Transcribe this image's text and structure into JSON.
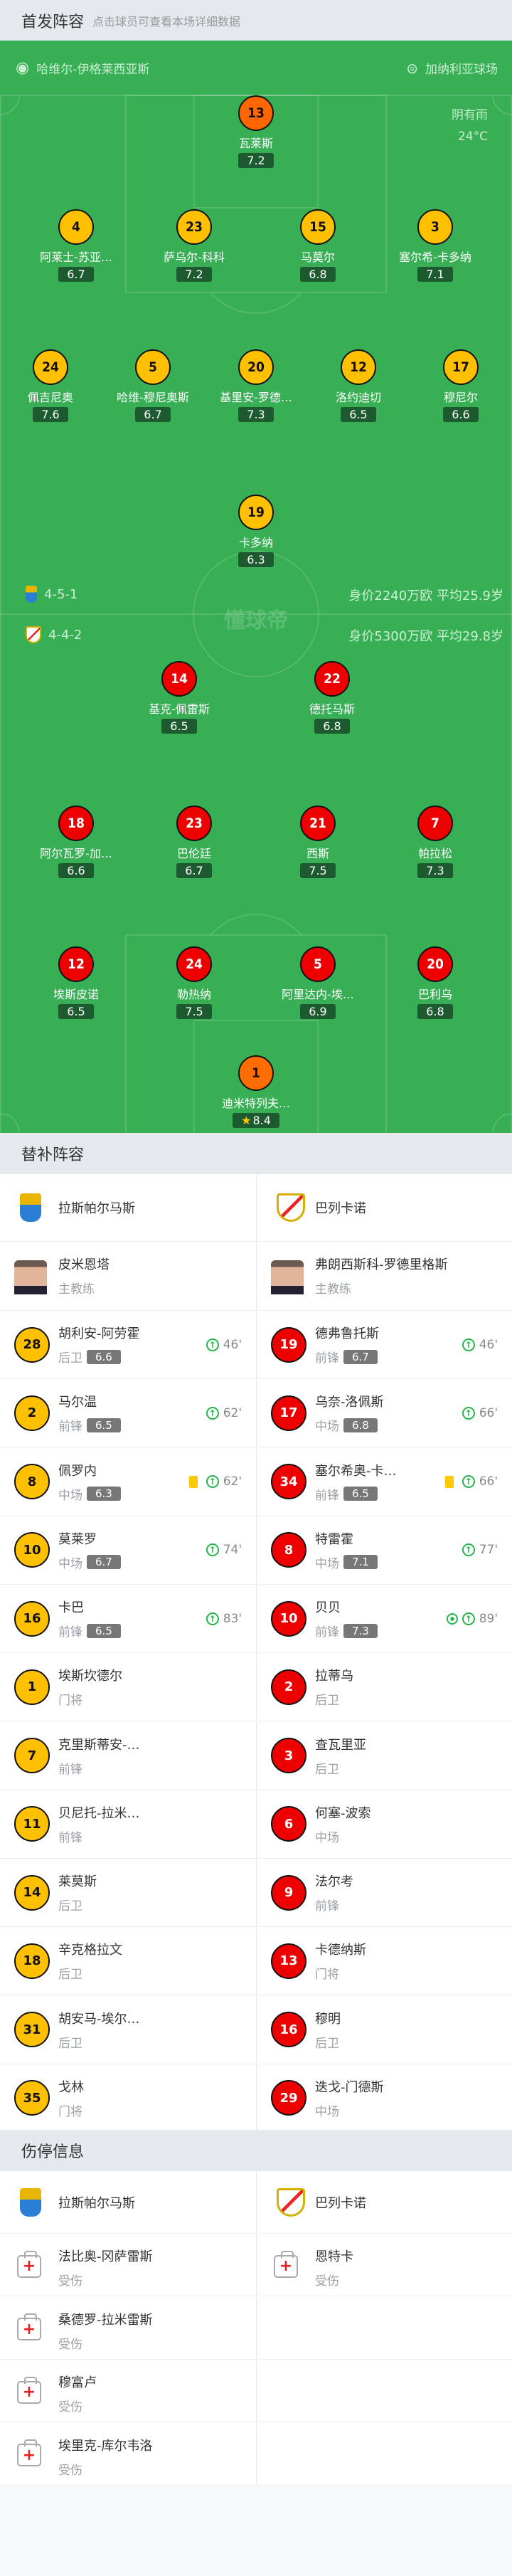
{
  "lineup_header": {
    "title": "首发阵容",
    "hint": "点击球员可查看本场详细数据"
  },
  "match_info": {
    "referee": "哈维尔-伊格莱西亚斯",
    "stadium": "加纳利亚球场",
    "weather": "阴有雨",
    "temperature": "24°C"
  },
  "watermark": "懂球帝",
  "colors": {
    "field": "#38ae55",
    "home": "#ffc000",
    "away": "#ee0000",
    "home_gk": "#ff6600",
    "away_gk": "#ff6d00",
    "rating_bg": "#1d5a30"
  },
  "home": {
    "team": "拉斯帕尔马斯",
    "formation": "4-5-1",
    "value_text": "身价2240万欧 平均25.9岁",
    "lines": [
      [
        {
          "num": "13",
          "name": "瓦莱斯",
          "rating": "7.2",
          "gk": true
        }
      ],
      [
        {
          "num": "4",
          "name": "阿莱士-苏亚…",
          "rating": "6.7"
        },
        {
          "num": "23",
          "name": "萨乌尔-科科",
          "rating": "7.2",
          "yellow": true,
          "off": "46'"
        },
        {
          "num": "15",
          "name": "马莫尔",
          "rating": "6.8"
        },
        {
          "num": "3",
          "name": "塞尔希-卡多纳",
          "rating": "7.1"
        }
      ],
      [
        {
          "num": "24",
          "name": "佩吉尼奥",
          "rating": "7.6",
          "off": "62'"
        },
        {
          "num": "5",
          "name": "哈维-穆尼奥斯",
          "rating": "6.7",
          "yellow": true
        },
        {
          "num": "20",
          "name": "基里安-罗德…",
          "rating": "7.3",
          "captain": true
        },
        {
          "num": "12",
          "name": "洛约迪切",
          "rating": "6.5",
          "off": "62'"
        },
        {
          "num": "17",
          "name": "穆尼尔",
          "rating": "6.6",
          "off": "74'"
        }
      ],
      [
        {
          "num": "19",
          "name": "卡多纳",
          "rating": "6.3",
          "off": "83'"
        }
      ]
    ]
  },
  "away": {
    "team": "巴列卡诺",
    "formation": "4-4-2",
    "value_text": "身价5300万欧 平均29.8岁",
    "lines": [
      [
        {
          "num": "14",
          "name": "基克-佩雷斯",
          "rating": "6.5",
          "off": "46'"
        },
        {
          "num": "22",
          "name": "德托马斯",
          "rating": "6.8",
          "off": "66'"
        }
      ],
      [
        {
          "num": "18",
          "name": "阿尔瓦罗-加…",
          "rating": "6.6",
          "off": "89'"
        },
        {
          "num": "23",
          "name": "巴伦廷",
          "rating": "6.7",
          "red": true,
          "captain": true
        },
        {
          "num": "21",
          "name": "西斯",
          "rating": "7.5",
          "off": "66'"
        },
        {
          "num": "7",
          "name": "帕拉松",
          "rating": "7.3",
          "off": "77'"
        }
      ],
      [
        {
          "num": "12",
          "name": "埃斯皮诺",
          "rating": "6.5"
        },
        {
          "num": "24",
          "name": "勒热纳",
          "rating": "7.5"
        },
        {
          "num": "5",
          "name": "阿里达内-埃…",
          "rating": "6.9"
        },
        {
          "num": "20",
          "name": "巴利乌",
          "rating": "6.8"
        }
      ],
      [
        {
          "num": "1",
          "name": "迪米特列夫…",
          "rating": "8.4",
          "gk": true,
          "mvp": true
        }
      ]
    ]
  },
  "subs": {
    "title": "替补阵容",
    "coach_label": "主教练",
    "home_coach": "皮米恩塔",
    "away_coach": "弗朗西斯科-罗德里格斯",
    "home": [
      {
        "num": "28",
        "name": "胡利安-阿劳霍",
        "pos": "后卫",
        "rating": "6.6",
        "in": "46'"
      },
      {
        "num": "2",
        "name": "马尔温",
        "pos": "前锋",
        "rating": "6.5",
        "in": "62'"
      },
      {
        "num": "8",
        "name": "佩罗内",
        "pos": "中场",
        "rating": "6.3",
        "in": "62'",
        "yellow": true
      },
      {
        "num": "10",
        "name": "莫莱罗",
        "pos": "中场",
        "rating": "6.7",
        "in": "74'"
      },
      {
        "num": "16",
        "name": "卡巴",
        "pos": "前锋",
        "rating": "6.5",
        "in": "83'"
      },
      {
        "num": "1",
        "name": "埃斯坎德尔",
        "pos": "门将"
      },
      {
        "num": "7",
        "name": "克里斯蒂安-…",
        "pos": "前锋"
      },
      {
        "num": "11",
        "name": "贝尼托-拉米…",
        "pos": "前锋"
      },
      {
        "num": "14",
        "name": "莱莫斯",
        "pos": "后卫"
      },
      {
        "num": "18",
        "name": "辛克格拉文",
        "pos": "后卫"
      },
      {
        "num": "31",
        "name": "胡安马-埃尔…",
        "pos": "后卫"
      },
      {
        "num": "35",
        "name": "戈林",
        "pos": "门将"
      }
    ],
    "away": [
      {
        "num": "19",
        "name": "德弗鲁托斯",
        "pos": "前锋",
        "rating": "6.7",
        "in": "46'"
      },
      {
        "num": "17",
        "name": "乌奈-洛佩斯",
        "pos": "中场",
        "rating": "6.8",
        "in": "66'"
      },
      {
        "num": "34",
        "name": "塞尔希奥-卡…",
        "pos": "前锋",
        "rating": "6.5",
        "in": "66'",
        "yellow": true
      },
      {
        "num": "8",
        "name": "特雷霍",
        "pos": "中场",
        "rating": "7.1",
        "in": "77'"
      },
      {
        "num": "10",
        "name": "贝贝",
        "pos": "前锋",
        "rating": "7.3",
        "in": "89'",
        "goal": true
      },
      {
        "num": "2",
        "name": "拉蒂乌",
        "pos": "后卫"
      },
      {
        "num": "3",
        "name": "查瓦里亚",
        "pos": "后卫"
      },
      {
        "num": "6",
        "name": "何塞-波索",
        "pos": "中场"
      },
      {
        "num": "9",
        "name": "法尔考",
        "pos": "前锋"
      },
      {
        "num": "13",
        "name": "卡德纳斯",
        "pos": "门将"
      },
      {
        "num": "16",
        "name": "穆明",
        "pos": "后卫"
      },
      {
        "num": "29",
        "name": "迭戈-门德斯",
        "pos": "中场"
      }
    ]
  },
  "injuries": {
    "title": "伤停信息",
    "home": [
      {
        "name": "法比奥-冈萨雷斯",
        "status": "受伤"
      },
      {
        "name": "桑德罗-拉米雷斯",
        "status": "受伤"
      },
      {
        "name": "穆富卢",
        "status": "受伤"
      },
      {
        "name": "埃里克-库尔韦洛",
        "status": "受伤"
      }
    ],
    "away": [
      {
        "name": "恩特卡",
        "status": "受伤"
      }
    ]
  }
}
